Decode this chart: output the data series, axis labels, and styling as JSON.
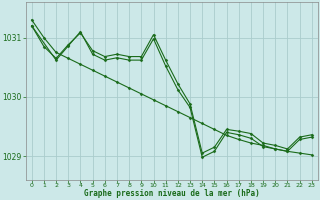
{
  "title": "Graphe pression niveau de la mer (hPa)",
  "background_color": "#cce8e8",
  "grid_color": "#aacccc",
  "line_color": "#1a6b1a",
  "spine_color": "#888888",
  "xlim": [
    -0.5,
    23.5
  ],
  "ylim": [
    1028.6,
    1031.6
  ],
  "yticks": [
    1029,
    1030,
    1031
  ],
  "xticks": [
    0,
    1,
    2,
    3,
    4,
    5,
    6,
    7,
    8,
    9,
    10,
    11,
    12,
    13,
    14,
    15,
    16,
    17,
    18,
    19,
    20,
    21,
    22,
    23
  ],
  "series": [
    {
      "x": [
        0,
        1,
        2,
        3,
        4,
        5,
        6,
        7,
        8,
        9,
        10,
        11,
        12,
        13,
        14,
        15,
        16,
        17,
        18,
        19,
        20,
        21,
        22,
        23
      ],
      "y": [
        1031.3,
        1031.0,
        1030.75,
        1030.65,
        1030.55,
        1030.45,
        1030.35,
        1030.25,
        1030.15,
        1030.05,
        1029.95,
        1029.85,
        1029.75,
        1029.65,
        1029.55,
        1029.45,
        1029.35,
        1029.28,
        1029.22,
        1029.18,
        1029.12,
        1029.08,
        1029.05,
        1029.02
      ]
    },
    {
      "x": [
        0,
        1,
        2,
        3,
        4,
        5,
        6,
        7,
        8,
        9,
        10,
        11,
        12,
        13,
        14,
        15,
        16,
        17,
        18,
        19,
        20,
        21,
        22,
        23
      ],
      "y": [
        1031.2,
        1030.85,
        1030.65,
        1030.88,
        1031.08,
        1030.78,
        1030.68,
        1030.72,
        1030.68,
        1030.68,
        1031.05,
        1030.62,
        1030.22,
        1029.88,
        1029.05,
        1029.15,
        1029.45,
        1029.42,
        1029.38,
        1029.22,
        1029.18,
        1029.12,
        1029.32,
        1029.36
      ]
    },
    {
      "x": [
        0,
        2,
        3,
        4,
        5,
        6,
        7,
        8,
        9,
        10,
        11,
        12,
        13,
        14,
        15,
        16,
        17,
        18,
        19,
        20,
        21,
        22,
        23
      ],
      "y": [
        1031.2,
        1030.62,
        1030.86,
        1031.1,
        1030.72,
        1030.62,
        1030.66,
        1030.62,
        1030.62,
        1030.98,
        1030.52,
        1030.12,
        1029.82,
        1028.98,
        1029.08,
        1029.4,
        1029.36,
        1029.3,
        1029.16,
        1029.12,
        1029.08,
        1029.28,
        1029.32
      ]
    }
  ]
}
